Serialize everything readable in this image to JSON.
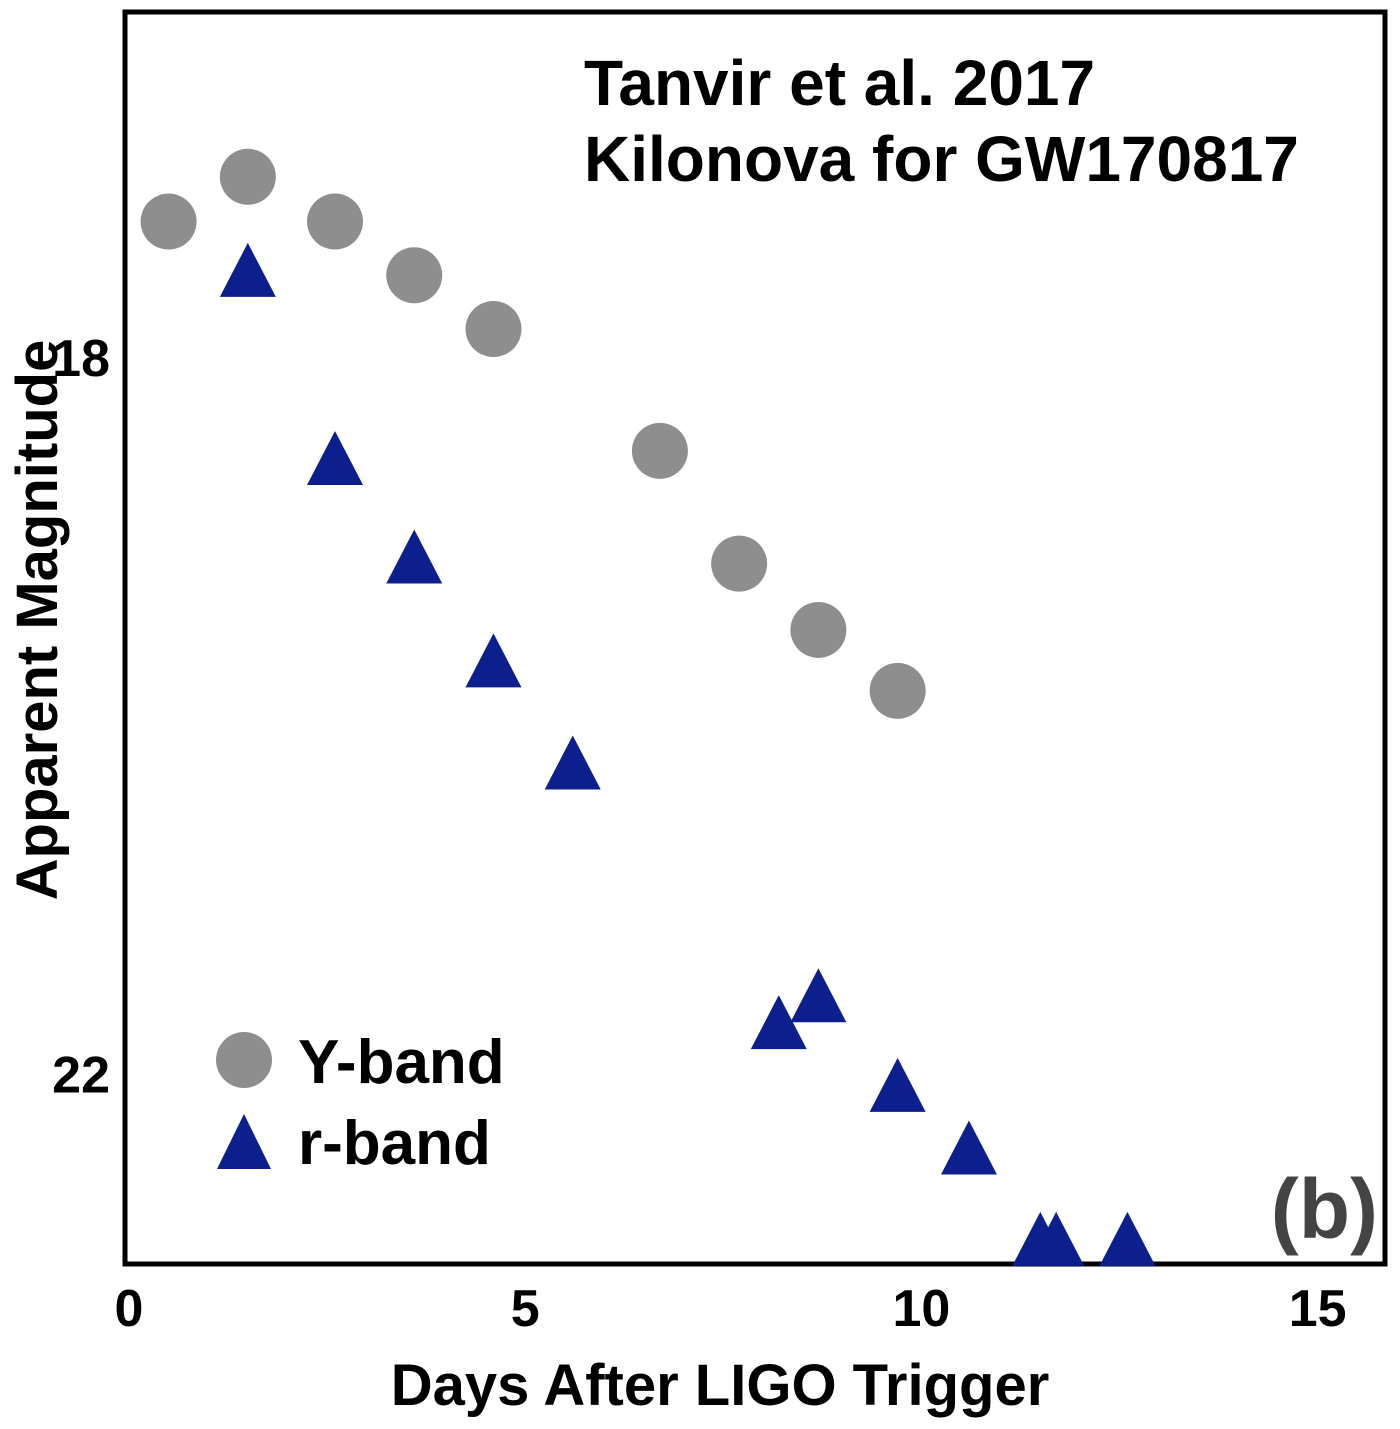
{
  "chart_data": {
    "type": "scatter",
    "annotation_lines": [
      "Tanvir et al. 2017",
      "Kilonova for GW170817"
    ],
    "xlabel": "Days After LIGO Trigger",
    "ylabel": "Apparent Magnitude",
    "xlim": [
      -0.05,
      15.85
    ],
    "ylim": [
      16.08,
      23.07
    ],
    "y_inverted": true,
    "x_ticks": [
      0,
      5,
      10,
      15
    ],
    "y_ticks": [
      18,
      22
    ],
    "grid": false,
    "legend_position": "bottom-left",
    "panel_label": "(b)",
    "series": [
      {
        "name": "Y-band",
        "marker": "circle",
        "color": "#8e8e8e",
        "x": [
          0.5,
          1.5,
          2.6,
          3.6,
          4.6,
          6.7,
          7.7,
          8.7,
          9.7
        ],
        "y": [
          17.25,
          17.0,
          17.25,
          17.55,
          17.85,
          18.53,
          19.16,
          19.53,
          19.87
        ]
      },
      {
        "name": "r-band",
        "marker": "triangle",
        "color": "#0d1f8c",
        "x": [
          1.5,
          2.6,
          3.6,
          4.6,
          5.6,
          8.2,
          8.7,
          9.7,
          10.6,
          11.5,
          11.7,
          12.6
        ],
        "y": [
          17.55,
          18.6,
          19.15,
          19.73,
          20.3,
          21.75,
          21.6,
          22.1,
          22.45,
          22.96,
          22.96,
          22.96
        ]
      }
    ]
  }
}
